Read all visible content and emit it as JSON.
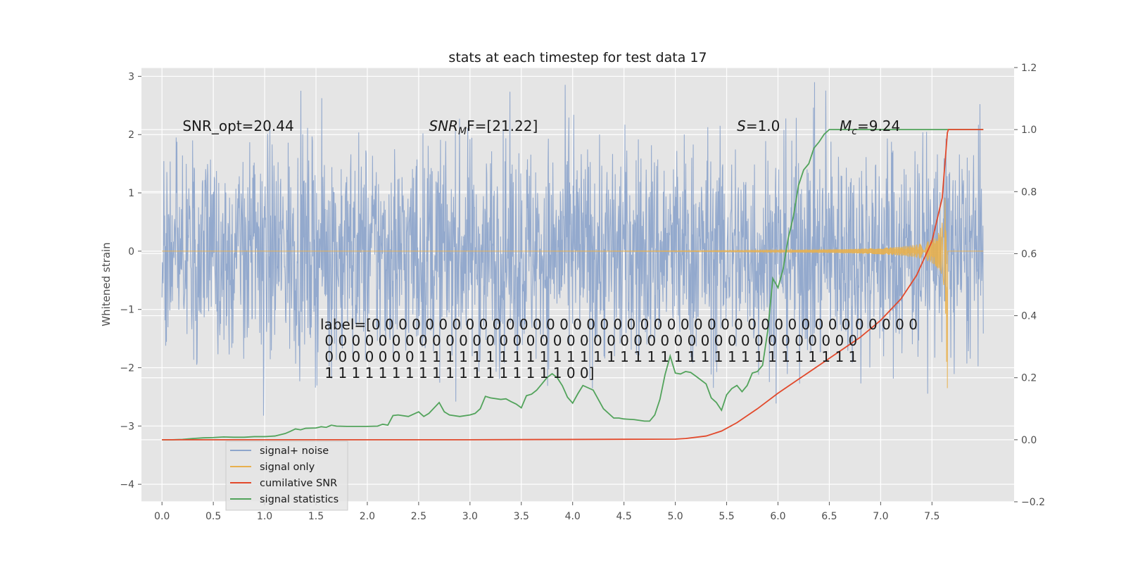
{
  "chart_data": {
    "type": "line",
    "title": "stats at each timestep for test data 17",
    "ylabel": "Whitened strain",
    "xlabel": "",
    "xlim": [
      -0.2,
      8.3
    ],
    "ylim": [
      -4.3,
      3.15
    ],
    "y2lim": [
      -0.2,
      1.2
    ],
    "grid": true,
    "legend_position": "lower-left",
    "x_ticks": [
      0.0,
      0.5,
      1.0,
      1.5,
      2.0,
      2.5,
      3.0,
      3.5,
      4.0,
      4.5,
      5.0,
      5.5,
      6.0,
      6.5,
      7.0,
      7.5
    ],
    "x_tick_labels": [
      "0.0",
      "0.5",
      "1.0",
      "1.5",
      "2.0",
      "2.5",
      "3.0",
      "3.5",
      "4.0",
      "4.5",
      "5.0",
      "5.5",
      "6.0",
      "6.5",
      "7.0",
      "7.5"
    ],
    "y_ticks": [
      3,
      2,
      1,
      0,
      -1,
      -2,
      -3,
      -4
    ],
    "y_tick_labels": [
      "3",
      "2",
      "1",
      "0",
      "−1",
      "−2",
      "−3",
      "−4"
    ],
    "y2_ticks": [
      1.2,
      1.0,
      0.8,
      0.6,
      0.4,
      0.2,
      0.0,
      -0.2
    ],
    "y2_tick_labels": [
      "1.2",
      "1.0",
      "0.8",
      "0.6",
      "0.4",
      "0.2",
      "0.0",
      "−0.2"
    ],
    "annotations": [
      {
        "text": "SNR_opt=20.44",
        "x": 0.2,
        "y": 2.1
      },
      {
        "text": "SNR_MF=[21.22]",
        "base": "SNR",
        "sub": "M",
        "rest": "F=[21.22]",
        "x": 2.6,
        "y": 2.1
      },
      {
        "text": "S=1.0",
        "base": "S",
        "rest": "=1.0",
        "x": 5.6,
        "y": 2.1
      },
      {
        "text": "M_c=9.24",
        "base": "M",
        "sub": "c",
        "rest": "=9.24",
        "x": 6.6,
        "y": 2.1
      }
    ],
    "label_lines": [
      "label=[0 0 0 0 0 0 0 0 0 0 0 0 0 0 0 0 0 0 0 0 0 0 0 0 0 0 0 0 0 0 0 0 0 0 0 0 0 0 0 0 0",
      " 0 0 0 0 0 0 0 0 0 0 0 0 0 0 0 0 0 0 0 0 0 0 0 0 0 0 0 0 0 0 0 0 0 0 0 0 0 0 0 0",
      " 0 0 0 0 0 0 0 1 1 1 1 1 1 1 1 1 1 1 1 1 1 1 1 1 1 1 1 1 1 1 1 1 1 1 1 1 1 1 1 1",
      " 1 1 1 1 1 1 1 1 1 1 1 1 1 1 1 1 1 1 0 0]"
    ],
    "series": [
      {
        "name": "signal+ noise",
        "color": "#8ea5cb",
        "kind": "noise",
        "t_start": 0.0,
        "t_end": 8.0,
        "envelope": 2.8
      },
      {
        "name": "signal only",
        "color": "#e8b04e",
        "kind": "chirp",
        "t_merge": 7.65,
        "peak": 2.05
      },
      {
        "name": "cumilative SNR",
        "color": "#e2492b",
        "axis": "right",
        "x": [
          0.0,
          1.0,
          2.0,
          3.0,
          4.0,
          5.0,
          5.1,
          5.3,
          5.45,
          5.6,
          5.8,
          6.0,
          6.2,
          6.4,
          6.6,
          6.8,
          7.0,
          7.2,
          7.35,
          7.5,
          7.6,
          7.65,
          7.66,
          8.0
        ],
        "y": [
          0.0,
          0.0,
          0.0,
          0.0,
          0.001,
          0.002,
          0.004,
          0.012,
          0.028,
          0.055,
          0.1,
          0.15,
          0.195,
          0.24,
          0.285,
          0.33,
          0.385,
          0.455,
          0.53,
          0.64,
          0.78,
          0.99,
          1.0,
          1.0
        ]
      },
      {
        "name": "signal statistics",
        "color": "#52a35b",
        "axis": "right",
        "x": [
          0.0,
          0.1,
          0.2,
          0.3,
          0.4,
          0.5,
          0.6,
          0.7,
          0.8,
          0.9,
          1.0,
          1.1,
          1.2,
          1.25,
          1.3,
          1.35,
          1.4,
          1.5,
          1.55,
          1.6,
          1.65,
          1.7,
          1.8,
          1.9,
          2.0,
          2.1,
          2.15,
          2.2,
          2.25,
          2.3,
          2.4,
          2.5,
          2.55,
          2.6,
          2.7,
          2.75,
          2.8,
          2.9,
          3.0,
          3.05,
          3.1,
          3.15,
          3.2,
          3.3,
          3.35,
          3.4,
          3.45,
          3.5,
          3.55,
          3.6,
          3.65,
          3.7,
          3.75,
          3.8,
          3.85,
          3.9,
          3.95,
          4.0,
          4.05,
          4.1,
          4.2,
          4.3,
          4.4,
          4.45,
          4.5,
          4.6,
          4.7,
          4.75,
          4.8,
          4.85,
          4.9,
          4.95,
          5.0,
          5.05,
          5.1,
          5.15,
          5.2,
          5.3,
          5.35,
          5.4,
          5.45,
          5.5,
          5.55,
          5.6,
          5.65,
          5.7,
          5.75,
          5.8,
          5.85,
          5.9,
          5.95,
          6.0,
          6.05,
          6.1,
          6.15,
          6.2,
          6.25,
          6.3,
          6.35,
          6.4,
          6.45,
          6.5,
          6.6,
          6.8,
          7.0,
          7.2,
          7.4,
          7.6,
          7.65,
          8.0
        ],
        "y": [
          0.0,
          0.0,
          0.001,
          0.004,
          0.006,
          0.007,
          0.009,
          0.008,
          0.008,
          0.01,
          0.01,
          0.012,
          0.02,
          0.027,
          0.035,
          0.032,
          0.037,
          0.038,
          0.042,
          0.04,
          0.047,
          0.044,
          0.043,
          0.043,
          0.043,
          0.044,
          0.05,
          0.047,
          0.078,
          0.08,
          0.075,
          0.09,
          0.075,
          0.085,
          0.12,
          0.09,
          0.08,
          0.075,
          0.08,
          0.085,
          0.1,
          0.14,
          0.135,
          0.13,
          0.132,
          0.123,
          0.115,
          0.103,
          0.142,
          0.147,
          0.16,
          0.18,
          0.2,
          0.213,
          0.2,
          0.174,
          0.137,
          0.118,
          0.148,
          0.175,
          0.16,
          0.1,
          0.07,
          0.07,
          0.067,
          0.065,
          0.06,
          0.06,
          0.08,
          0.13,
          0.21,
          0.27,
          0.215,
          0.212,
          0.22,
          0.217,
          0.205,
          0.18,
          0.135,
          0.12,
          0.095,
          0.145,
          0.165,
          0.175,
          0.155,
          0.175,
          0.215,
          0.22,
          0.24,
          0.35,
          0.52,
          0.49,
          0.55,
          0.65,
          0.72,
          0.82,
          0.87,
          0.89,
          0.94,
          0.96,
          0.985,
          1.0,
          1.0,
          1.0,
          1.0,
          1.0,
          1.0,
          1.0,
          1.0,
          1.0
        ]
      }
    ]
  }
}
